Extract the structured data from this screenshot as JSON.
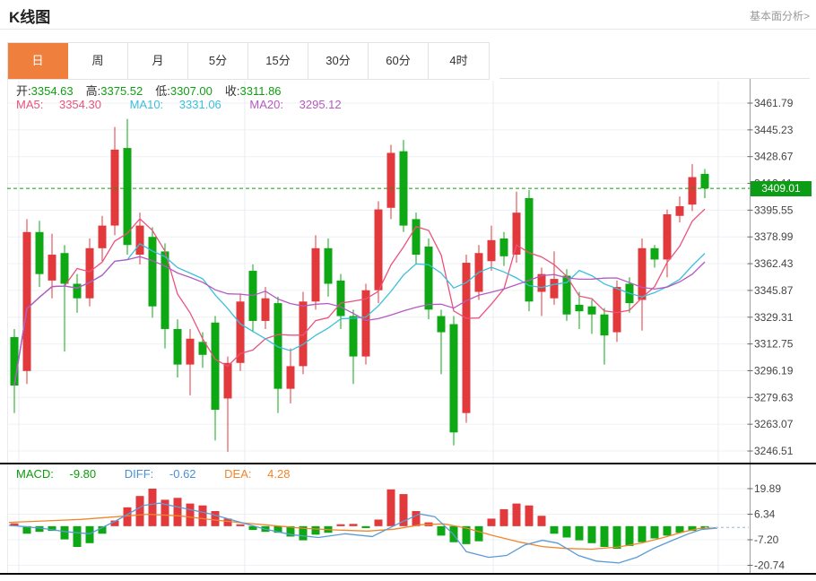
{
  "header": {
    "title": "K线图",
    "analysis_link": "基本面分析>"
  },
  "tabs": {
    "items": [
      "日",
      "周",
      "月",
      "5分",
      "15分",
      "30分",
      "60分",
      "4时"
    ],
    "selected_index": 0
  },
  "ohlc": {
    "open_label": "开:",
    "open": "3354.63",
    "high_label": "高:",
    "high": "3375.52",
    "low_label": "低:",
    "low": "3307.00",
    "close_label": "收:",
    "close": "3311.86"
  },
  "ma": {
    "ma5_label": "MA5:",
    "ma5": "3354.30",
    "ma10_label": "MA10:",
    "ma10": "3331.06",
    "ma20_label": "MA20:",
    "ma20": "3295.12"
  },
  "macd_info": {
    "macd_label": "MACD:",
    "macd": "-9.80",
    "diff_label": "DIFF:",
    "diff": "-0.62",
    "dea_label": "DEA:",
    "dea": "4.28"
  },
  "price_line": {
    "label": "3409.01",
    "value": 3409.01
  },
  "colors": {
    "up": "#e2393d",
    "down": "#0da813",
    "ma5": "#ec527c",
    "ma10": "#3bbfdc",
    "ma20": "#b55ac0",
    "diff": "#5b9bd5",
    "dea": "#f0862b",
    "tab_accent": "#ee7f3d",
    "badge_bg": "#0c9c15",
    "price_dash": "#0ca00c",
    "grid": "#edf0f4",
    "vgrid": "#e8ebf1",
    "axis_line": "#9aa0a8",
    "tick_text": "#444444",
    "value_green": "#0f9e12",
    "label_dark": "#333333",
    "macd_green": "#0a9d0a",
    "diff_blue": "#4a90d9",
    "dea_orange": "#f0862b",
    "separator": "#0a0a0a",
    "ext_dash": "#b9c6da"
  },
  "chart_data": {
    "type": "candlestick",
    "title": "K线图",
    "panes": [
      {
        "name": "price",
        "y_ticks": [
          3461.79,
          3445.23,
          3428.67,
          3412.11,
          3395.55,
          3378.99,
          3362.43,
          3345.87,
          3329.31,
          3312.75,
          3296.19,
          3279.63,
          3263.07,
          3246.51
        ],
        "current_price": 3409.01,
        "ma_periods": [
          5,
          10,
          20
        ],
        "candles_format": [
          "open",
          "close",
          "high",
          "low"
        ],
        "candles": [
          [
            3317,
            3287,
            3322,
            3270
          ],
          [
            3296,
            3382,
            3390,
            3288
          ],
          [
            3382,
            3356,
            3389,
            3348
          ],
          [
            3352,
            3368,
            3381,
            3341
          ],
          [
            3369,
            3350,
            3374,
            3308
          ],
          [
            3350,
            3341,
            3356,
            3332
          ],
          [
            3341,
            3372,
            3378,
            3336
          ],
          [
            3372,
            3386,
            3392,
            3364
          ],
          [
            3386,
            3433,
            3447,
            3380
          ],
          [
            3434,
            3374,
            3452,
            3368
          ],
          [
            3368,
            3386,
            3394,
            3362
          ],
          [
            3379,
            3336,
            3385,
            3329
          ],
          [
            3370,
            3322,
            3375,
            3310
          ],
          [
            3322,
            3300,
            3328,
            3292
          ],
          [
            3300,
            3316,
            3322,
            3281
          ],
          [
            3314,
            3306,
            3320,
            3298
          ],
          [
            3326,
            3272,
            3330,
            3253
          ],
          [
            3279,
            3301,
            3305,
            3246
          ],
          [
            3301,
            3339,
            3344,
            3296
          ],
          [
            3358,
            3327,
            3362,
            3320
          ],
          [
            3327,
            3341,
            3348,
            3322
          ],
          [
            3338,
            3285,
            3342,
            3270
          ],
          [
            3285,
            3299,
            3310,
            3276
          ],
          [
            3299,
            3339,
            3345,
            3294
          ],
          [
            3339,
            3372,
            3380,
            3334
          ],
          [
            3372,
            3350,
            3378,
            3342
          ],
          [
            3352,
            3330,
            3356,
            3322
          ],
          [
            3330,
            3305,
            3334,
            3288
          ],
          [
            3305,
            3346,
            3350,
            3300
          ],
          [
            3346,
            3396,
            3401,
            3338
          ],
          [
            3397,
            3431,
            3436,
            3390
          ],
          [
            3432,
            3386,
            3439,
            3382
          ],
          [
            3390,
            3368,
            3394,
            3362
          ],
          [
            3373,
            3334,
            3378,
            3328
          ],
          [
            3330,
            3320,
            3334,
            3294
          ],
          [
            3325,
            3258,
            3330,
            3250
          ],
          [
            3270,
            3363,
            3368,
            3264
          ],
          [
            3345,
            3369,
            3374,
            3340
          ],
          [
            3364,
            3377,
            3386,
            3358
          ],
          [
            3378,
            3367,
            3382,
            3361
          ],
          [
            3368,
            3394,
            3407,
            3363
          ],
          [
            3403,
            3339,
            3408,
            3333
          ],
          [
            3345,
            3356,
            3360,
            3330
          ],
          [
            3341,
            3353,
            3370,
            3337
          ],
          [
            3355,
            3331,
            3359,
            3327
          ],
          [
            3337,
            3333,
            3345,
            3322
          ],
          [
            3336,
            3331,
            3340,
            3319
          ],
          [
            3331,
            3318,
            3335,
            3300
          ],
          [
            3320,
            3348,
            3352,
            3314
          ],
          [
            3350,
            3338,
            3354,
            3332
          ],
          [
            3340,
            3372,
            3378,
            3321
          ],
          [
            3372,
            3365,
            3374,
            3360
          ],
          [
            3365,
            3393,
            3396,
            3354
          ],
          [
            3392,
            3398,
            3404,
            3388
          ],
          [
            3399,
            3416,
            3424,
            3395
          ],
          [
            3418,
            3409,
            3421,
            3403
          ]
        ]
      },
      {
        "name": "macd",
        "y_ticks": [
          19.89,
          6.34,
          -7.2,
          -20.74
        ],
        "hist": [
          1.5,
          -4,
          -3,
          -2.5,
          -7,
          -11,
          -9,
          -4,
          3,
          10,
          16,
          19.89,
          14,
          15,
          12,
          11,
          8,
          4,
          1,
          -2,
          -3,
          -3.5,
          -5.5,
          -7.5,
          -4.5,
          -3.5,
          1,
          1.2,
          -1,
          3.5,
          19.5,
          17,
          8,
          2,
          -5,
          -8.5,
          -9.5,
          -8,
          4,
          9,
          12,
          11,
          5.5,
          -4,
          -6,
          -7.5,
          -9,
          -11,
          -12,
          -10.5,
          -8.5,
          -6.5,
          -5,
          -3.5,
          -2.5,
          -1.5
        ],
        "diff_line": [
          [
            10,
            0.5
          ],
          [
            45,
            -1
          ],
          [
            75,
            -3
          ],
          [
            100,
            -4
          ],
          [
            130,
            3
          ],
          [
            160,
            11
          ],
          [
            178,
            12.2
          ],
          [
            205,
            9.5
          ],
          [
            235,
            6.5
          ],
          [
            265,
            2.5
          ],
          [
            295,
            -1.5
          ],
          [
            325,
            -4.5
          ],
          [
            355,
            -6
          ],
          [
            385,
            -4
          ],
          [
            415,
            -5.5
          ],
          [
            445,
            1.5
          ],
          [
            468,
            6.5
          ],
          [
            485,
            5
          ],
          [
            505,
            -4
          ],
          [
            520,
            -13.5
          ],
          [
            545,
            -16.5
          ],
          [
            565,
            -15.5
          ],
          [
            585,
            -10
          ],
          [
            605,
            -7.5
          ],
          [
            622,
            -9
          ],
          [
            645,
            -15.5
          ],
          [
            665,
            -18.5
          ],
          [
            690,
            -19.5
          ],
          [
            710,
            -16.5
          ],
          [
            730,
            -11.5
          ],
          [
            750,
            -7.5
          ],
          [
            768,
            -4
          ],
          [
            782,
            -1.8
          ],
          [
            800,
            -1
          ]
        ],
        "dea_line": [
          [
            10,
            2
          ],
          [
            50,
            2.8
          ],
          [
            90,
            3.6
          ],
          [
            130,
            5
          ],
          [
            165,
            6.3
          ],
          [
            200,
            5.5
          ],
          [
            235,
            3.5
          ],
          [
            270,
            1.8
          ],
          [
            305,
            0.3
          ],
          [
            340,
            -1.2
          ],
          [
            375,
            -2
          ],
          [
            410,
            -2.6
          ],
          [
            440,
            -1.6
          ],
          [
            470,
            0.8
          ],
          [
            495,
            1.2
          ],
          [
            520,
            -1
          ],
          [
            550,
            -5
          ],
          [
            580,
            -8.5
          ],
          [
            605,
            -10.8
          ],
          [
            630,
            -11.8
          ],
          [
            660,
            -12.2
          ],
          [
            690,
            -11
          ],
          [
            715,
            -9
          ],
          [
            740,
            -6
          ],
          [
            762,
            -3
          ],
          [
            780,
            -1.2
          ],
          [
            800,
            -0.8
          ]
        ],
        "flat_ext": [
          [
            786,
            -0.7
          ],
          [
            835,
            -0.7
          ]
        ]
      }
    ],
    "v_gridlines_x": [
      21,
      273,
      550,
      801
    ],
    "legend_position": "none",
    "grid": true
  }
}
